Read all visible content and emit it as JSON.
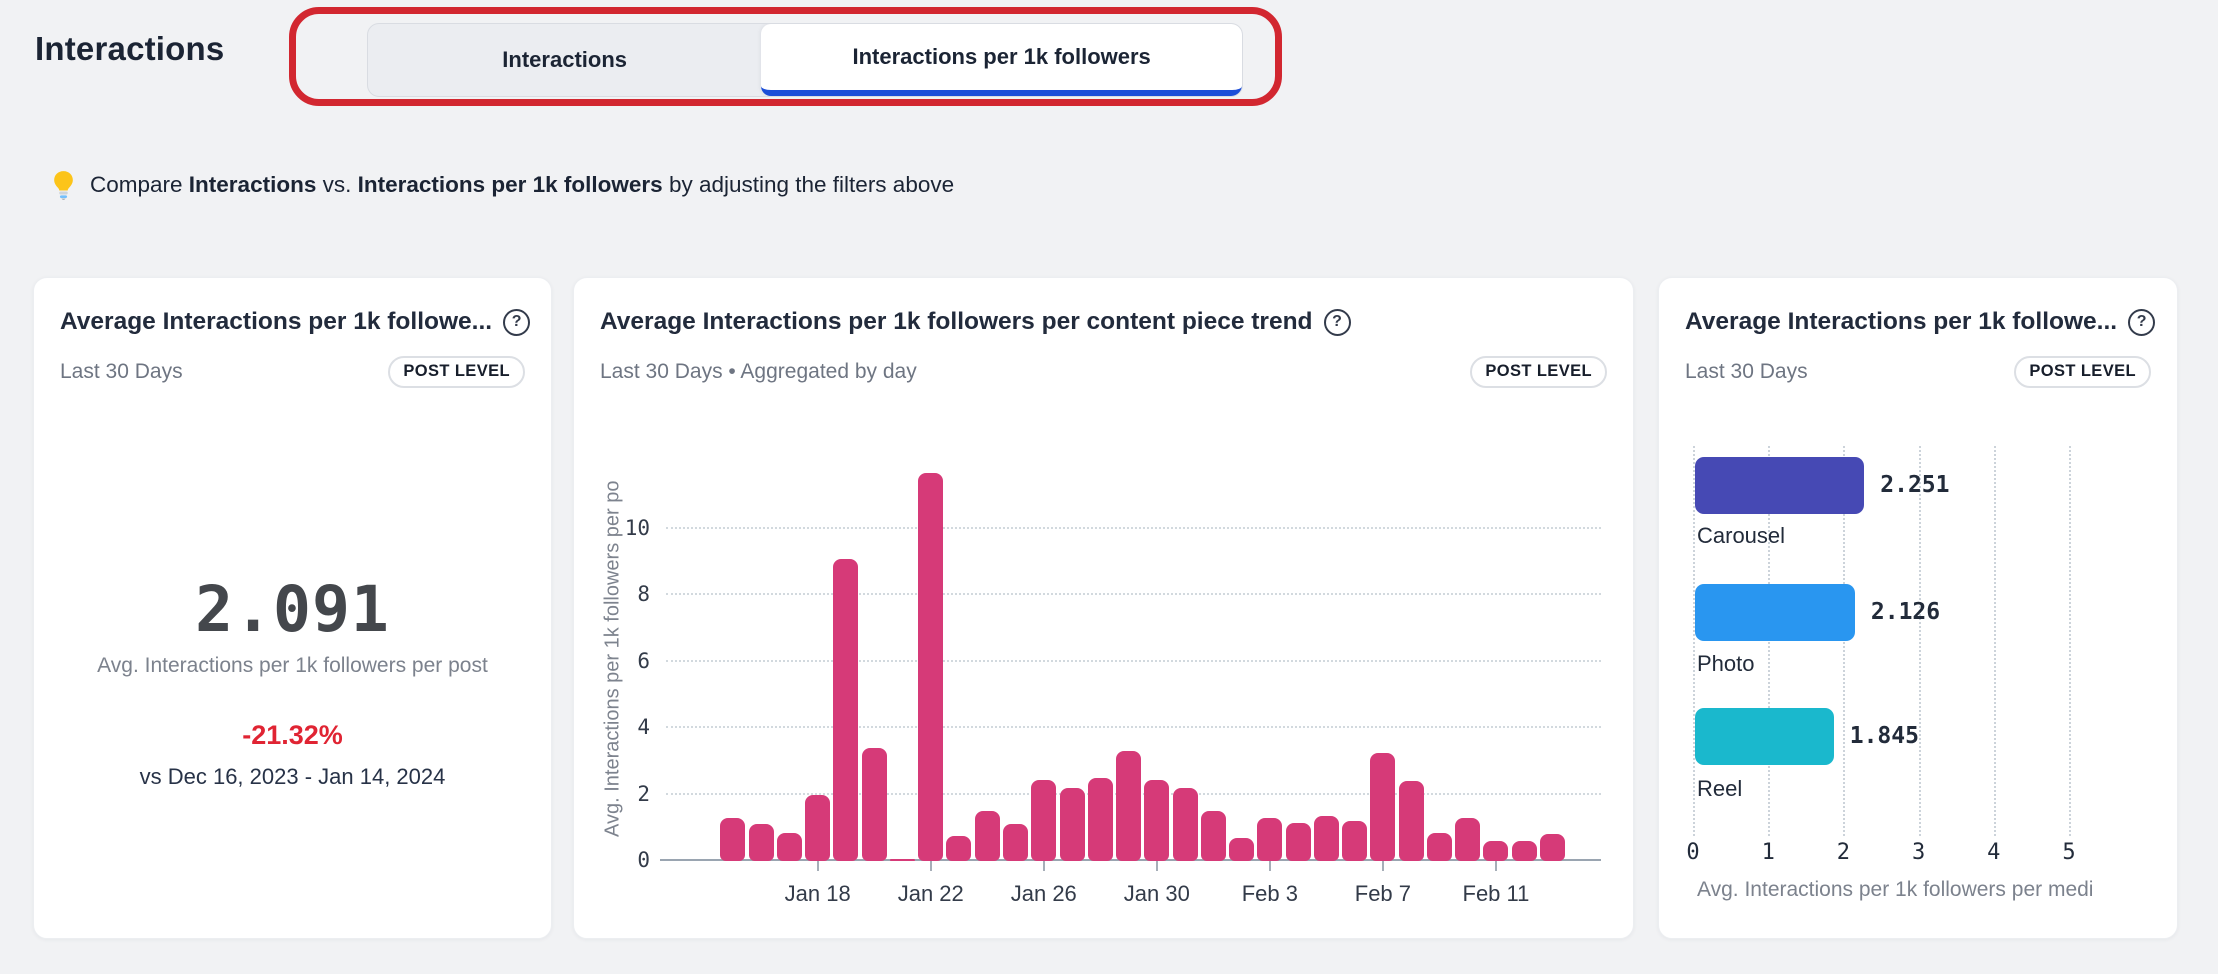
{
  "page": {
    "title": "Interactions"
  },
  "tabs": [
    {
      "label": "Interactions",
      "active": false
    },
    {
      "label": "Interactions per 1k followers",
      "active": true
    }
  ],
  "tip": {
    "prefix": "Compare ",
    "bold1": "Interactions",
    "middle": " vs. ",
    "bold2": "Interactions per 1k followers",
    "suffix": " by adjusting the filters above"
  },
  "icons": {
    "help": "?"
  },
  "colors": {
    "active_tab_underline": "#1c4ed8",
    "annotation_red": "#d22730",
    "trend_bar_pink": "#d63a78",
    "delta_red": "#e02433",
    "carousel_bar": "#4649b4",
    "photo_bar": "#2996f0",
    "reel_bar": "#1ab8cd"
  },
  "cards": {
    "summary": {
      "title": "Average Interactions per 1k followe...",
      "period": "Last 30 Days",
      "badge": "POST LEVEL",
      "value": "2.091",
      "value_label": "Avg. Interactions per 1k followers per post",
      "delta": "-21.32%",
      "comparison": "vs Dec 16, 2023 - Jan 14, 2024"
    },
    "trend": {
      "title": "Average Interactions per 1k followers per content piece trend",
      "period": "Last 30 Days • Aggregated by day",
      "badge": "POST LEVEL"
    },
    "media": {
      "title": "Average Interactions per 1k followe...",
      "period": "Last 30 Days",
      "badge": "POST LEVEL"
    }
  },
  "chart_data": [
    {
      "type": "bar",
      "title": "Average Interactions per 1k followers per content piece trend",
      "x": [
        "Jan 15",
        "Jan 16",
        "Jan 17",
        "Jan 18",
        "Jan 19",
        "Jan 20",
        "Jan 21",
        "Jan 22",
        "Jan 23",
        "Jan 24",
        "Jan 25",
        "Jan 26",
        "Jan 27",
        "Jan 28",
        "Jan 29",
        "Jan 30",
        "Jan 31",
        "Feb 1",
        "Feb 2",
        "Feb 3",
        "Feb 4",
        "Feb 5",
        "Feb 6",
        "Feb 7",
        "Feb 8",
        "Feb 9",
        "Feb 10",
        "Feb 11",
        "Feb 12",
        "Feb 13"
      ],
      "values": [
        1.3,
        1.1,
        0.85,
        2.0,
        9.1,
        3.4,
        0.05,
        11.7,
        0.75,
        1.5,
        1.1,
        2.45,
        2.2,
        2.5,
        3.3,
        2.45,
        2.2,
        1.5,
        0.7,
        1.3,
        1.15,
        1.35,
        1.2,
        3.25,
        2.4,
        0.85,
        1.3,
        0.6,
        0.6,
        0.8
      ],
      "xlabel": "",
      "ylabel": "Avg. Interactions per 1k followers per po",
      "ylim": [
        0,
        12.2
      ],
      "y_ticks": [
        0,
        2,
        4,
        6,
        8,
        10
      ],
      "x_tick_labels": [
        "Jan 18",
        "Jan 22",
        "Jan 26",
        "Jan 30",
        "Feb 3",
        "Feb 7",
        "Feb 11"
      ],
      "x_tick_start_index": 3,
      "x_tick_step": 4,
      "grid": "dotted-horizontal",
      "legend": "none",
      "bar_color": "#d63a78"
    },
    {
      "type": "bar",
      "orientation": "horizontal",
      "categories": [
        "Carousel",
        "Photo",
        "Reel"
      ],
      "values": [
        2.251,
        2.126,
        1.845
      ],
      "value_labels": [
        "2.251",
        "2.126",
        "1.845"
      ],
      "colors": [
        "#4649b4",
        "#2996f0",
        "#1ab8cd"
      ],
      "xlabel": "Avg. Interactions per 1k followers per medi",
      "xlim": [
        0,
        5
      ],
      "x_ticks": [
        0,
        1,
        2,
        3,
        4,
        5
      ],
      "grid": "dotted-vertical",
      "legend": "none"
    }
  ]
}
